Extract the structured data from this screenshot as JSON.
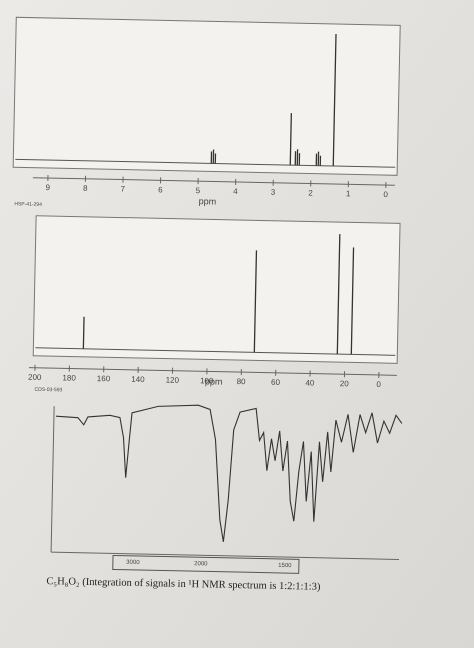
{
  "hnmr": {
    "ticks": [
      "9",
      "8",
      "7",
      "6",
      "5",
      "4",
      "3",
      "2",
      "1",
      "0"
    ],
    "unit": "ppm",
    "code": "HSP-41-294"
  },
  "cnmr": {
    "ticks": [
      "200",
      "180",
      "160",
      "140",
      "120",
      "100",
      "80",
      "60",
      "40",
      "20",
      "0"
    ],
    "unit": "ppm",
    "code": "CDS-03-593"
  },
  "ir": {
    "ticks": [
      "3000",
      "2000",
      "1500"
    ]
  },
  "caption": "C₅H₈O₂ (Integration of signals in ¹H NMR spectrum is 1:2:1:1:3)"
}
